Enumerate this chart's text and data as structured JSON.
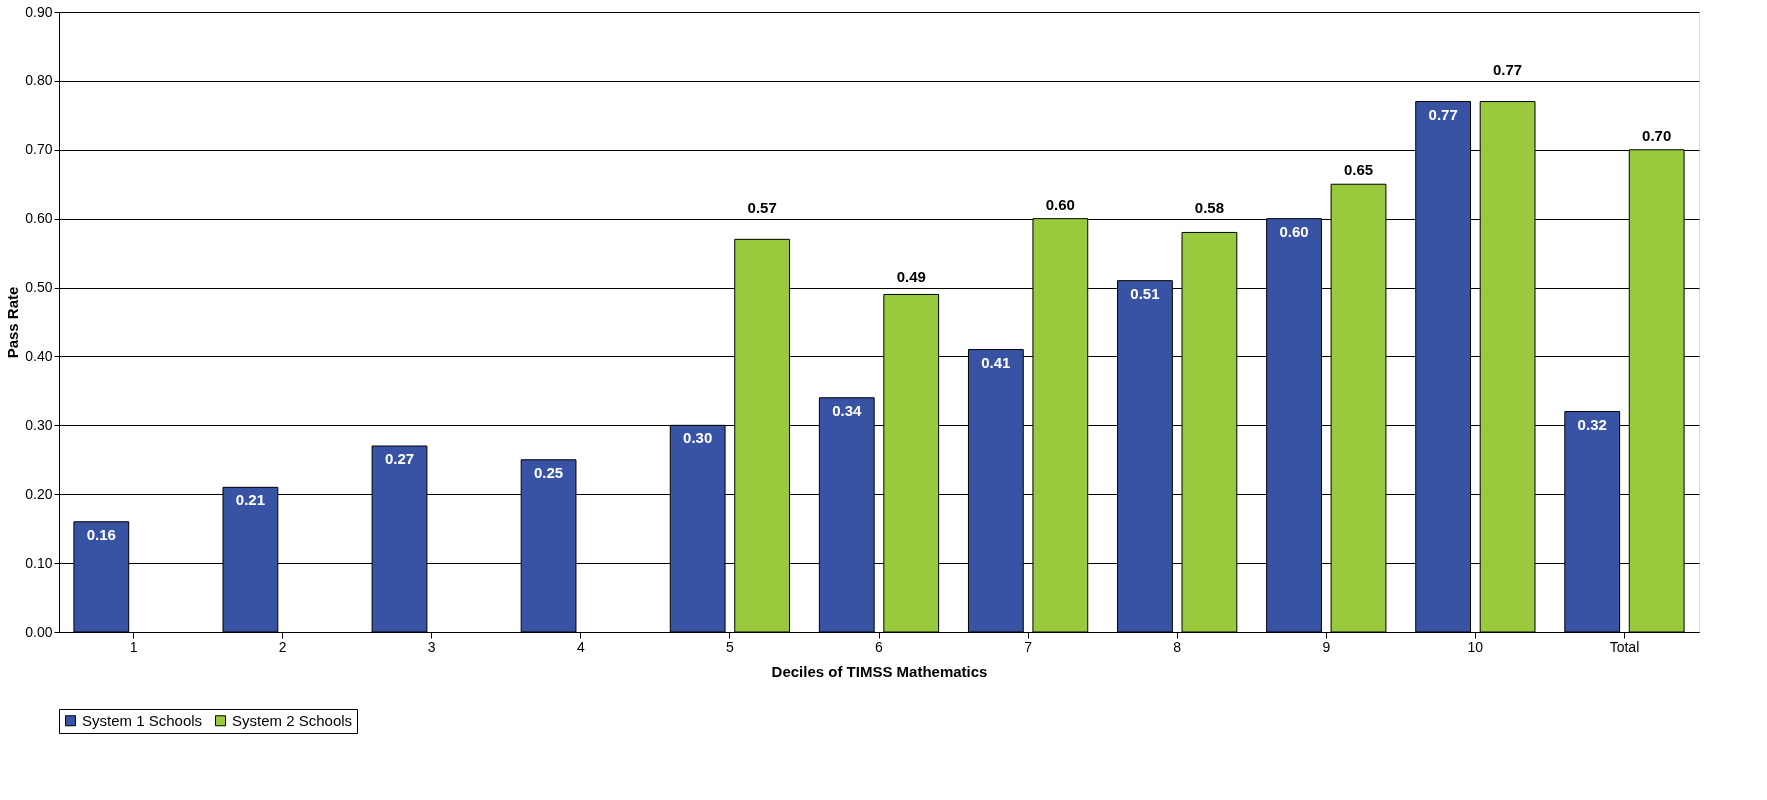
{
  "chart_data": {
    "type": "bar",
    "xlabel": "Deciles of TIMSS Mathematics",
    "ylabel": "Pass Rate",
    "categories": [
      "1",
      "2",
      "3",
      "4",
      "5",
      "6",
      "7",
      "8",
      "9",
      "10",
      "Total"
    ],
    "series": [
      {
        "name": "System 1 Schools",
        "color": "#3953a4",
        "values": [
          0.16,
          0.21,
          0.27,
          0.25,
          0.3,
          0.34,
          0.41,
          0.51,
          0.6,
          0.77,
          0.32
        ],
        "value_labels": [
          "0.16",
          "0.21",
          "0.27",
          "0.25",
          "0.30",
          "0.34",
          "0.41",
          "0.51",
          "0.60",
          "0.77",
          "0.32"
        ]
      },
      {
        "name": "System 2 Schools",
        "color": "#99c93c",
        "values": [
          null,
          null,
          null,
          null,
          0.57,
          0.49,
          0.6,
          0.58,
          0.65,
          0.77,
          0.7
        ],
        "value_labels": [
          null,
          null,
          null,
          null,
          "0.57",
          "0.49",
          "0.60",
          "0.58",
          "0.65",
          "0.77",
          "0.70"
        ]
      }
    ],
    "ylim": [
      0,
      0.9
    ],
    "yticks": [
      {
        "value": 0,
        "label": "0.00"
      },
      {
        "value": 0.1,
        "label": "0.10"
      },
      {
        "value": 0.2,
        "label": "0.20"
      },
      {
        "value": 0.3,
        "label": "0.30"
      },
      {
        "value": 0.4,
        "label": "0.40"
      },
      {
        "value": 0.5,
        "label": "0.50"
      },
      {
        "value": 0.6,
        "label": "0.60"
      },
      {
        "value": 0.7,
        "label": "0.70"
      },
      {
        "value": 0.8,
        "label": "0.80"
      },
      {
        "value": 0.9,
        "label": "0.90"
      }
    ],
    "grid": "y",
    "legend": "bottom"
  }
}
